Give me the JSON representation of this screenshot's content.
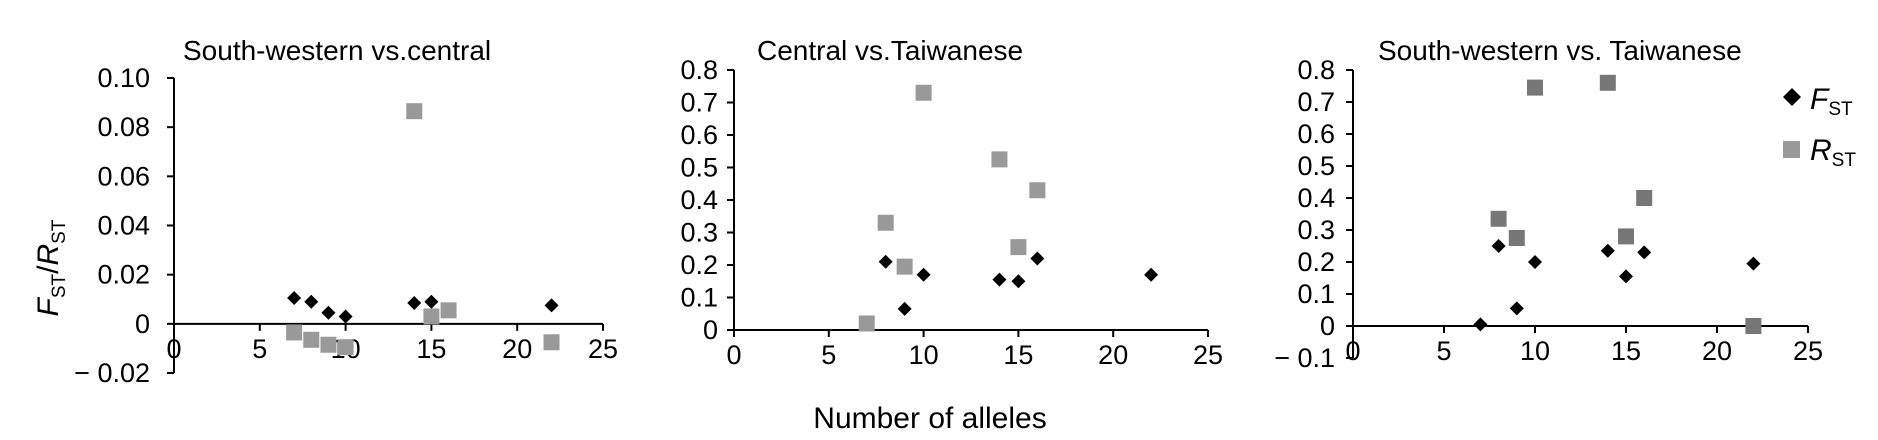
{
  "figure": {
    "xlabel": "Number of alleles",
    "ylabel": {
      "main1": "F",
      "sub1": "ST",
      "sep": "/",
      "main2": "R",
      "sub2": "ST"
    },
    "legend": {
      "position": "top-right",
      "entries": [
        {
          "main": "F",
          "sub": "ST",
          "marker": "diamond",
          "color": "#000000"
        },
        {
          "main": "R",
          "sub": "ST",
          "marker": "square",
          "color": "#999999"
        }
      ]
    }
  },
  "chart_data": [
    {
      "type": "scatter",
      "title": "South-western vs.central",
      "xlim": [
        0,
        25
      ],
      "ylim": [
        -0.02,
        0.1
      ],
      "xticks": [
        "0",
        "5",
        "10",
        "15",
        "20",
        "25"
      ],
      "yticks": [
        "− 0.02",
        "0",
        "0.02",
        "0.04",
        "0.06",
        "0.08",
        "0.10"
      ],
      "series": [
        {
          "name": "FST",
          "marker": "diamond",
          "color": "#000000",
          "points": [
            [
              7,
              0.0105
            ],
            [
              8,
              0.009
            ],
            [
              9,
              0.0045
            ],
            [
              10,
              0.003
            ],
            [
              14,
              0.0085
            ],
            [
              15,
              0.009
            ],
            [
              22,
              0.0075
            ]
          ]
        },
        {
          "name": "RST",
          "marker": "square",
          "color": "#999999",
          "points": [
            [
              7,
              -0.0035
            ],
            [
              8,
              -0.0065
            ],
            [
              9,
              -0.0085
            ],
            [
              10,
              -0.0095
            ],
            [
              14,
              0.0865
            ],
            [
              15,
              0.003
            ],
            [
              16,
              0.0055
            ],
            [
              22,
              -0.0075
            ]
          ]
        }
      ]
    },
    {
      "type": "scatter",
      "title": "Central vs.Taiwanese",
      "xlim": [
        0,
        25
      ],
      "ylim": [
        0,
        0.8
      ],
      "xticks": [
        "0",
        "5",
        "10",
        "15",
        "20",
        "25"
      ],
      "yticks": [
        "0",
        "0.1",
        "0.2",
        "0.3",
        "0.4",
        "0.5",
        "0.6",
        "0.7",
        "0.8"
      ],
      "series": [
        {
          "name": "FST",
          "marker": "diamond",
          "color": "#000000",
          "points": [
            [
              8,
              0.21
            ],
            [
              9,
              0.065
            ],
            [
              10,
              0.17
            ],
            [
              14,
              0.155
            ],
            [
              15,
              0.15
            ],
            [
              16,
              0.22
            ],
            [
              22,
              0.17
            ]
          ]
        },
        {
          "name": "RST",
          "marker": "square",
          "color": "#999999",
          "points": [
            [
              7,
              0.02
            ],
            [
              8,
              0.33
            ],
            [
              9,
              0.195
            ],
            [
              10,
              0.73
            ],
            [
              14,
              0.525
            ],
            [
              15,
              0.255
            ],
            [
              16,
              0.43
            ]
          ]
        }
      ]
    },
    {
      "type": "scatter",
      "title": "South-western vs. Taiwanese",
      "xlim": [
        0,
        25
      ],
      "ylim": [
        -0.1,
        0.8
      ],
      "xticks": [
        "0",
        "5",
        "10",
        "15",
        "20",
        "25"
      ],
      "yticks": [
        "− 0.1",
        "0",
        "0.1",
        "0.2",
        "0.3",
        "0.4",
        "0.5",
        "0.6",
        "0.7",
        "0.8"
      ],
      "series": [
        {
          "name": "FST",
          "marker": "diamond",
          "color": "#000000",
          "points": [
            [
              7,
              0.005
            ],
            [
              8,
              0.25
            ],
            [
              9,
              0.055
            ],
            [
              10,
              0.2
            ],
            [
              14,
              0.235
            ],
            [
              15,
              0.155
            ],
            [
              16,
              0.23
            ],
            [
              22,
              0.195
            ]
          ]
        },
        {
          "name": "RST",
          "marker": "square",
          "color": "#777777",
          "points": [
            [
              8,
              0.335
            ],
            [
              9,
              0.275
            ],
            [
              10,
              0.745
            ],
            [
              14,
              0.76
            ],
            [
              15,
              0.28
            ],
            [
              16,
              0.4
            ],
            [
              22,
              0.0
            ]
          ]
        }
      ]
    }
  ]
}
